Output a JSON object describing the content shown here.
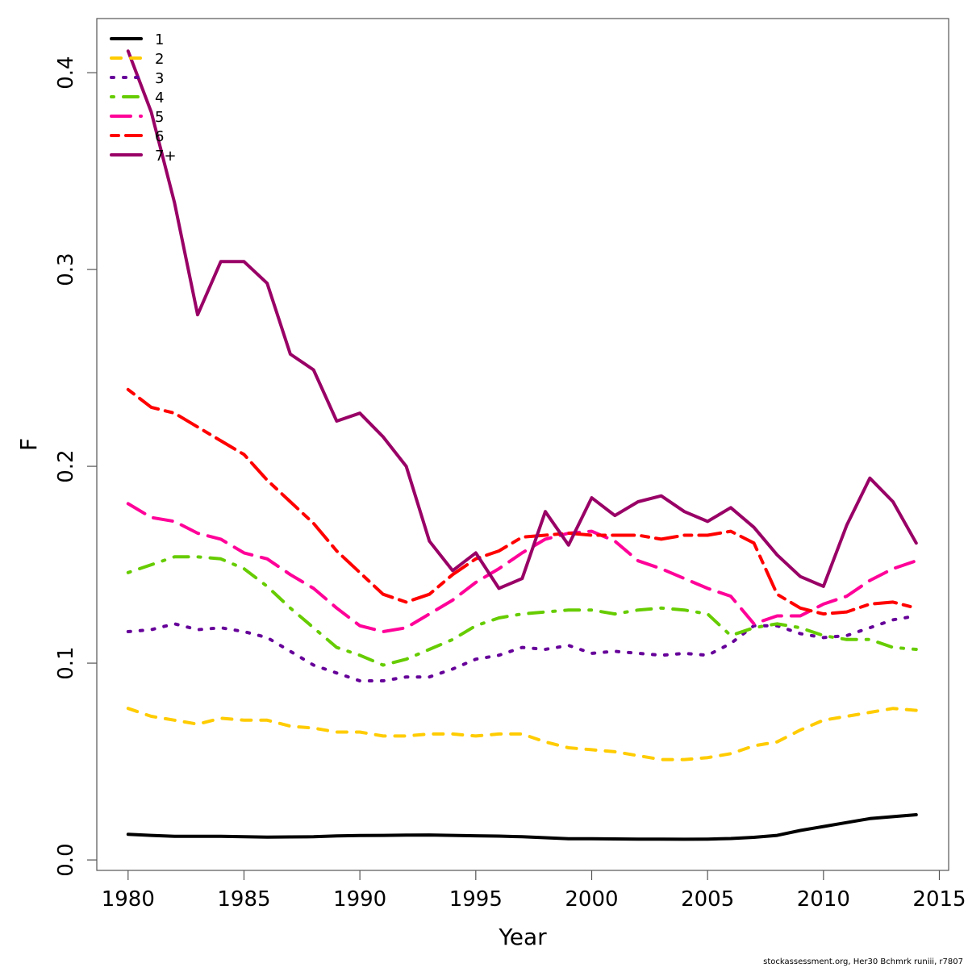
{
  "chart_data": {
    "type": "line",
    "title": "",
    "xlabel": "Year",
    "ylabel": "F",
    "xlim": [
      1978.65,
      2015.4
    ],
    "ylim": [
      -0.0053,
      0.4275
    ],
    "xticks": [
      1980,
      1985,
      1990,
      1995,
      2000,
      2005,
      2010,
      2015
    ],
    "xtick_labels": [
      "1980",
      "1985",
      "1990",
      "1995",
      "2000",
      "2005",
      "2010",
      "2015"
    ],
    "yticks": [
      0.0,
      0.1,
      0.2,
      0.3,
      0.4
    ],
    "ytick_labels": [
      "0.0",
      "0.1",
      "0.2",
      "0.3",
      "0.4"
    ],
    "grid": false,
    "legend_position": "top-left",
    "x": [
      1980,
      1981,
      1982,
      1983,
      1984,
      1985,
      1986,
      1987,
      1988,
      1989,
      1990,
      1991,
      1992,
      1993,
      1994,
      1995,
      1996,
      1997,
      1998,
      1999,
      2000,
      2001,
      2002,
      2003,
      2004,
      2005,
      2006,
      2007,
      2008,
      2009,
      2010,
      2011,
      2012,
      2013,
      2014
    ],
    "series": [
      {
        "name": "1",
        "color": "#000000",
        "dash": "solid",
        "values": [
          0.013,
          0.0125,
          0.012,
          0.012,
          0.012,
          0.0118,
          0.0116,
          0.0117,
          0.0118,
          0.0122,
          0.0124,
          0.0125,
          0.0126,
          0.0127,
          0.0125,
          0.0123,
          0.0121,
          0.0118,
          0.0113,
          0.0108,
          0.0108,
          0.0107,
          0.0106,
          0.0106,
          0.0105,
          0.0106,
          0.0109,
          0.0115,
          0.0125,
          0.015,
          0.017,
          0.019,
          0.021,
          0.022,
          0.023
        ]
      },
      {
        "name": "2",
        "color": "#FFCC00",
        "dash": "dashed",
        "values": [
          0.077,
          0.073,
          0.071,
          0.069,
          0.072,
          0.071,
          0.071,
          0.068,
          0.067,
          0.065,
          0.065,
          0.063,
          0.063,
          0.064,
          0.064,
          0.063,
          0.064,
          0.064,
          0.06,
          0.057,
          0.056,
          0.055,
          0.053,
          0.051,
          0.051,
          0.052,
          0.054,
          0.058,
          0.06,
          0.066,
          0.071,
          0.073,
          0.075,
          0.077,
          0.076
        ]
      },
      {
        "name": "3",
        "color": "#660099",
        "dash": "dotted",
        "values": [
          0.116,
          0.117,
          0.12,
          0.117,
          0.118,
          0.116,
          0.113,
          0.106,
          0.099,
          0.095,
          0.091,
          0.091,
          0.093,
          0.093,
          0.097,
          0.102,
          0.104,
          0.108,
          0.107,
          0.109,
          0.105,
          0.106,
          0.105,
          0.104,
          0.105,
          0.104,
          0.11,
          0.119,
          0.119,
          0.115,
          0.113,
          0.114,
          0.118,
          0.122,
          0.124
        ]
      },
      {
        "name": "4",
        "color": "#66CC00",
        "dash": "dotdash",
        "values": [
          0.146,
          0.15,
          0.154,
          0.154,
          0.153,
          0.148,
          0.139,
          0.128,
          0.118,
          0.108,
          0.104,
          0.099,
          0.102,
          0.107,
          0.112,
          0.119,
          0.123,
          0.125,
          0.126,
          0.127,
          0.127,
          0.125,
          0.127,
          0.128,
          0.127,
          0.125,
          0.114,
          0.118,
          0.12,
          0.118,
          0.114,
          0.112,
          0.112,
          0.108,
          0.107
        ]
      },
      {
        "name": "5",
        "color": "#FF0099",
        "dash": "longdash",
        "values": [
          0.181,
          0.174,
          0.172,
          0.166,
          0.163,
          0.156,
          0.153,
          0.145,
          0.138,
          0.128,
          0.119,
          0.116,
          0.118,
          0.125,
          0.132,
          0.141,
          0.148,
          0.156,
          0.163,
          0.166,
          0.167,
          0.162,
          0.152,
          0.148,
          0.143,
          0.138,
          0.134,
          0.12,
          0.124,
          0.124,
          0.13,
          0.134,
          0.142,
          0.148,
          0.152
        ]
      },
      {
        "name": "6",
        "color": "#FF0000",
        "dash": "twodash",
        "values": [
          0.239,
          0.23,
          0.227,
          0.22,
          0.213,
          0.206,
          0.193,
          0.182,
          0.171,
          0.157,
          0.146,
          0.135,
          0.131,
          0.135,
          0.145,
          0.153,
          0.157,
          0.164,
          0.165,
          0.166,
          0.165,
          0.165,
          0.165,
          0.163,
          0.165,
          0.165,
          0.167,
          0.161,
          0.135,
          0.128,
          0.125,
          0.126,
          0.13,
          0.131,
          0.128
        ]
      },
      {
        "name": "7+",
        "color": "#990066",
        "dash": "solid",
        "values": [
          0.411,
          0.38,
          0.334,
          0.277,
          0.304,
          0.304,
          0.293,
          0.257,
          0.249,
          0.223,
          0.227,
          0.215,
          0.2,
          0.162,
          0.147,
          0.156,
          0.138,
          0.143,
          0.177,
          0.16,
          0.184,
          0.175,
          0.182,
          0.185,
          0.177,
          0.172,
          0.179,
          0.169,
          0.155,
          0.144,
          0.139,
          0.17,
          0.194,
          0.182,
          0.161
        ]
      }
    ]
  },
  "footnote": "stockassessment.org, Her30  Bchmrk  runiii, r7807"
}
